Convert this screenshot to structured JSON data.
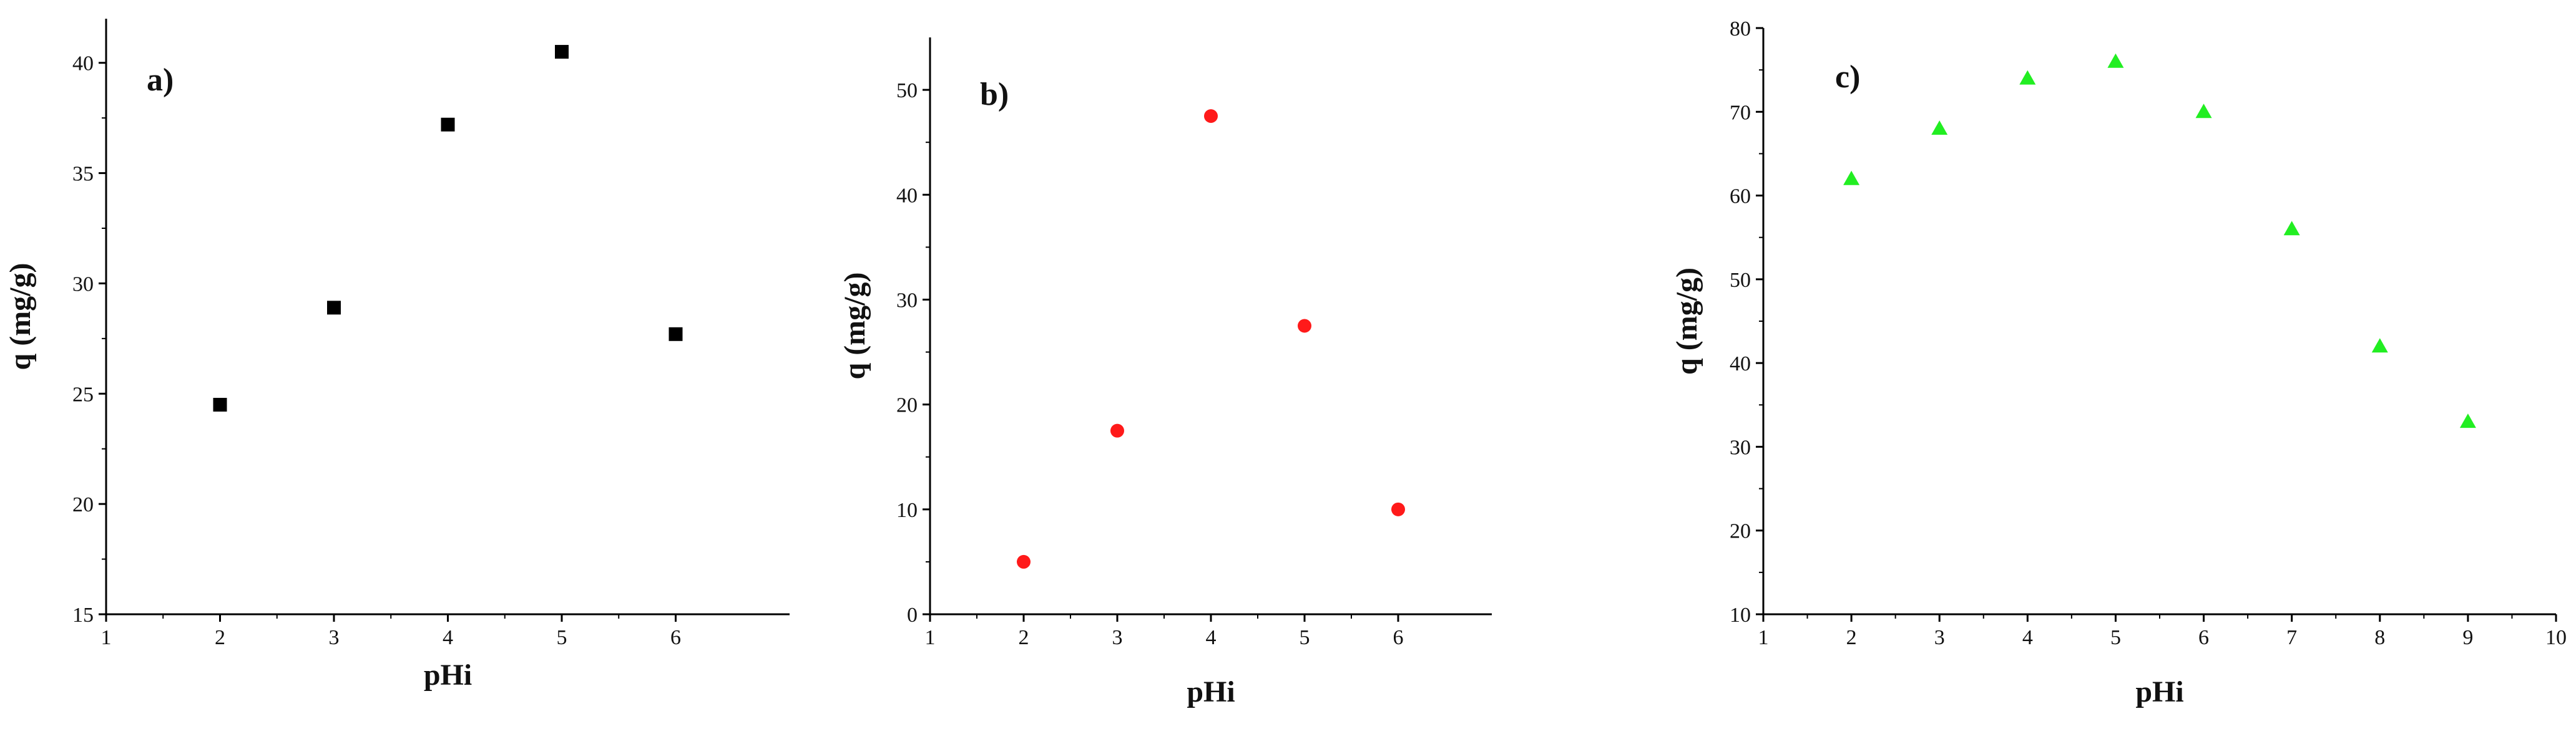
{
  "chart_data": [
    {
      "type": "scatter",
      "panel_label": "a)",
      "xlabel": "pHi",
      "ylabel": "q (mg/g)",
      "xlim": [
        1,
        7
      ],
      "ylim": [
        15,
        42
      ],
      "xticks": [
        1,
        2,
        3,
        4,
        5,
        6
      ],
      "yticks": [
        15,
        20,
        25,
        30,
        35,
        40
      ],
      "grid": false,
      "marker": "square",
      "color": "#000000",
      "series": [
        {
          "x": [
            2,
            3,
            4,
            5,
            6
          ],
          "y": [
            24.5,
            28.9,
            37.2,
            40.5,
            27.7
          ]
        }
      ]
    },
    {
      "type": "scatter",
      "panel_label": "b)",
      "xlabel": "pHi",
      "ylabel": "q (mg/g)",
      "xlim": [
        1,
        7
      ],
      "ylim": [
        0,
        55
      ],
      "xticks": [
        1,
        2,
        3,
        4,
        5,
        6
      ],
      "yticks": [
        0,
        10,
        20,
        30,
        40,
        50
      ],
      "grid": false,
      "marker": "circle",
      "color": "#ff1a1a",
      "series": [
        {
          "x": [
            2,
            3,
            4,
            5,
            6
          ],
          "y": [
            5,
            17.5,
            47.5,
            27.5,
            10
          ]
        }
      ]
    },
    {
      "type": "scatter",
      "panel_label": "c)",
      "xlabel": "pHi",
      "ylabel": "q (mg/g)",
      "xlim": [
        1,
        10
      ],
      "ylim": [
        10,
        80
      ],
      "xticks": [
        1,
        2,
        3,
        4,
        5,
        6,
        7,
        8,
        9,
        10
      ],
      "yticks": [
        10,
        20,
        30,
        40,
        50,
        60,
        70,
        80
      ],
      "grid": false,
      "marker": "triangle",
      "color": "#22ee22",
      "series": [
        {
          "x": [
            2,
            3,
            4,
            5,
            6,
            7,
            8,
            9
          ],
          "y": [
            62,
            68,
            74,
            76,
            70,
            56,
            42,
            33
          ]
        }
      ]
    }
  ]
}
